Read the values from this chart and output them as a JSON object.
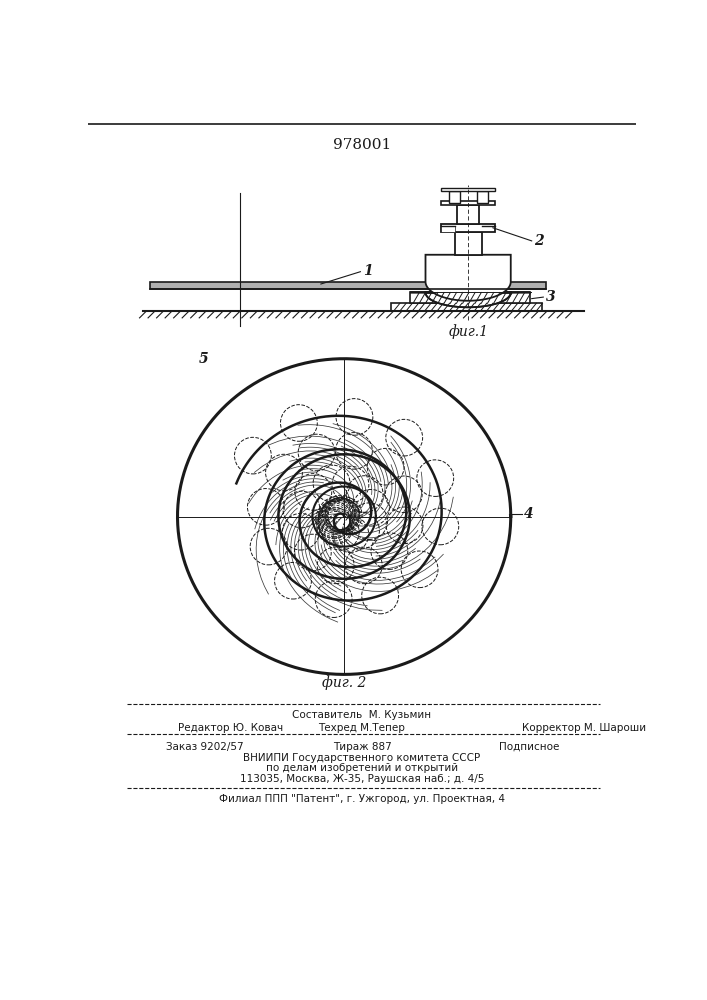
{
  "patent_number": "978001",
  "fig1_label": "фиг.1",
  "fig2_label": "фиг. 2",
  "label1": "1",
  "label2": "2",
  "label3": "3",
  "label4": "4",
  "label5": "5",
  "footer_line0": "Составитель  М. Кузьмин",
  "footer_line1a": "Редактор Ю. Ковач",
  "footer_line1b": "Техред М.Тепер",
  "footer_line1c": "Корректор М. Шароши",
  "footer_line2a": "Заказ 9202/57",
  "footer_line2b": "Тираж 887",
  "footer_line2c": "Подписное",
  "footer_line3": "ВНИИПИ Государственного комитета СССР",
  "footer_line4": "по делам изобретений и открытий",
  "footer_line5": "113035, Москва, Ж-35, Раушская наб.; д. 4/5",
  "footer_line6": "Филиал ППП \"Патент\", г. Ужгород, ул. Проектная, 4",
  "bg_color": "#ffffff",
  "line_color": "#1a1a1a"
}
